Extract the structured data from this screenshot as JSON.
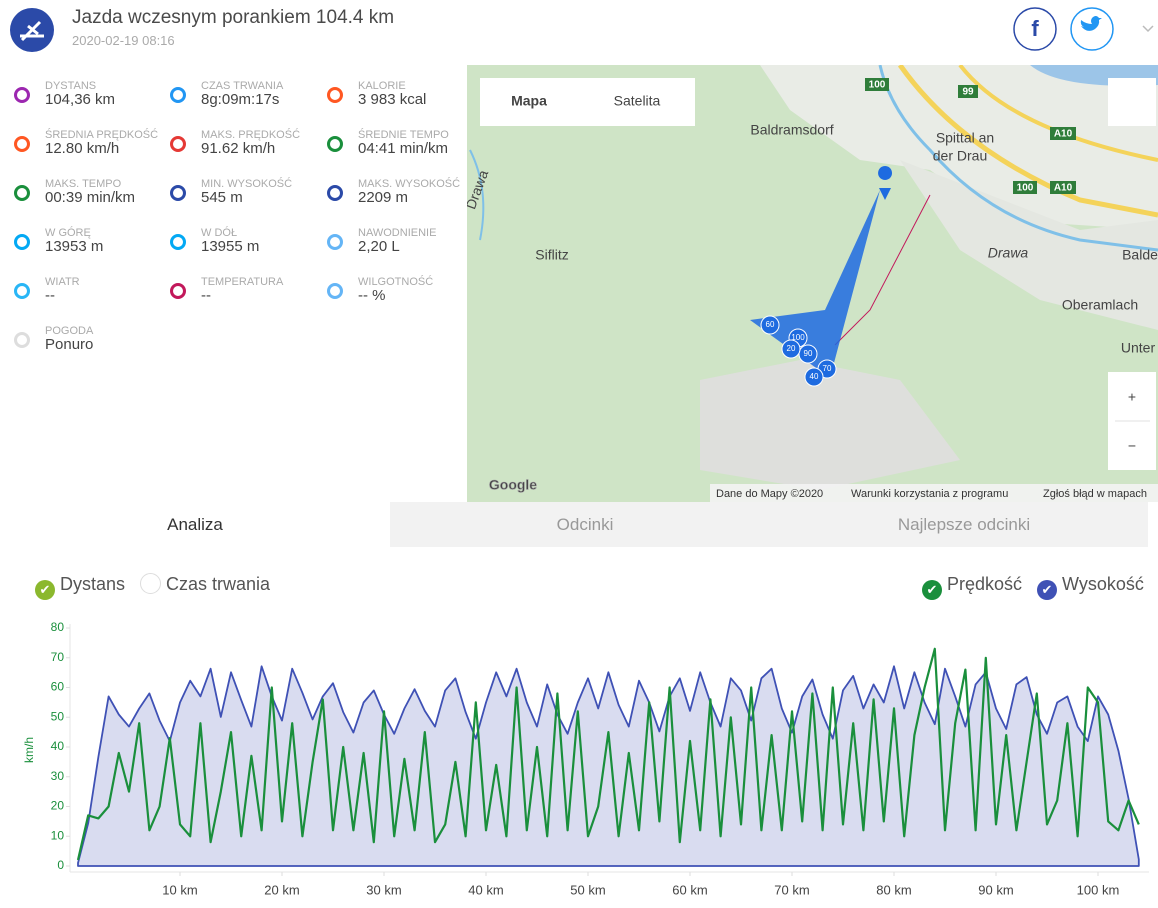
{
  "header": {
    "title": "Jazda wczesnym porankiem 104.4 km",
    "date": "2020-02-19 08:16"
  },
  "stats": [
    {
      "label": "DYSTANS",
      "value": "104,36 km"
    },
    {
      "label": "CZAS TRWANIA",
      "value": "8g:09m:17s"
    },
    {
      "label": "KALORIE",
      "value": "3 983 kcal"
    },
    {
      "label": "ŚREDNIA PRĘDKOŚĆ",
      "value": "12.80 km/h"
    },
    {
      "label": "MAKS. PRĘDKOŚĆ",
      "value": "91.62 km/h"
    },
    {
      "label": "ŚREDNIE TEMPO",
      "value": "04:41 min/km"
    },
    {
      "label": "MAKS. TEMPO",
      "value": "00:39 min/km"
    },
    {
      "label": "MIN. WYSOKOŚĆ",
      "value": "545 m"
    },
    {
      "label": "MAKS. WYSOKOŚĆ",
      "value": "2209 m"
    },
    {
      "label": "W GÓRĘ",
      "value": "13953 m"
    },
    {
      "label": "W DÓŁ",
      "value": "13955 m"
    },
    {
      "label": "NAWODNIENIE",
      "value": "2,20 L"
    },
    {
      "label": "WIATR",
      "value": "--"
    },
    {
      "label": "TEMPERATURA",
      "value": "--"
    },
    {
      "label": "WILGOTNOŚĆ",
      "value": "-- %"
    },
    {
      "label": "POGODA",
      "value": "Ponuro"
    }
  ],
  "map": {
    "buttons": [
      "Mapa",
      "Satelita"
    ],
    "places": [
      "Baldramsdorf",
      "Spittal an",
      "der Drau",
      "Siflitz",
      "Oberamlach",
      "Unter",
      "Balde",
      "Drawa",
      "Drawa"
    ],
    "roads": [
      "100",
      "99",
      "A10",
      "100",
      "A10"
    ],
    "markers": [
      "60",
      "100",
      "90",
      "70",
      "40",
      "20"
    ],
    "zoom": [
      "+",
      "−"
    ],
    "logo": "Google",
    "footer": [
      "Dane do Mapy ©2020",
      "Warunki korzystania z programu",
      "Zgłoś błąd w mapach"
    ]
  },
  "tabs": [
    "Analiza",
    "Odcinki",
    "Najlepsze odcinki"
  ],
  "toggles": [
    "Dystans",
    "Czas trwania"
  ],
  "chart_data": {
    "type": "line",
    "ylabel": "km/h",
    "x": [
      0,
      1,
      2,
      3,
      4,
      5,
      6,
      7,
      8,
      9,
      10,
      11,
      12,
      13,
      14,
      15,
      16,
      17,
      18,
      19,
      20,
      21,
      22,
      23,
      24,
      25,
      26,
      27,
      28,
      29,
      30,
      31,
      32,
      33,
      34,
      35,
      36,
      37,
      38,
      39,
      40,
      41,
      42,
      43,
      44,
      45,
      46,
      47,
      48,
      49,
      50,
      51,
      52,
      53,
      54,
      55,
      56,
      57,
      58,
      59,
      60,
      61,
      62,
      63,
      64,
      65,
      66,
      67,
      68,
      69,
      70,
      71,
      72,
      73,
      74,
      75,
      76,
      77,
      78,
      79,
      80,
      81,
      82,
      83,
      84,
      85,
      86,
      87,
      88,
      89,
      90,
      91,
      92,
      93,
      94,
      95,
      96,
      97,
      98,
      99,
      100,
      101,
      102,
      103,
      104
    ],
    "xlim": [
      0,
      105
    ],
    "xticks": [
      {
        "value": 10,
        "label": "10 km"
      },
      {
        "value": 20,
        "label": "20 km"
      },
      {
        "value": 30,
        "label": "30 km"
      },
      {
        "value": 40,
        "label": "40 km"
      },
      {
        "value": 50,
        "label": "50 km"
      },
      {
        "value": 60,
        "label": "60 km"
      },
      {
        "value": 70,
        "label": "70 km"
      },
      {
        "value": 80,
        "label": "80 km"
      },
      {
        "value": 90,
        "label": "90 km"
      },
      {
        "value": 100,
        "label": "100 km"
      }
    ],
    "ylim": [
      0,
      80
    ],
    "yticks": [
      0,
      10,
      20,
      30,
      40,
      50,
      60,
      70,
      80
    ],
    "y2lim": [
      545,
      2517
    ],
    "grid": false,
    "series": [
      {
        "name": "Prędkość",
        "color": "#1a8f3c",
        "values": [
          2,
          17,
          16,
          20,
          38,
          25,
          48,
          12,
          20,
          43,
          14,
          10,
          48,
          8,
          25,
          45,
          10,
          37,
          12,
          60,
          15,
          48,
          10,
          35,
          56,
          12,
          40,
          12,
          38,
          8,
          52,
          10,
          36,
          12,
          45,
          8,
          14,
          35,
          10,
          55,
          12,
          34,
          10,
          60,
          12,
          40,
          10,
          58,
          12,
          52,
          10,
          20,
          45,
          10,
          38,
          12,
          55,
          15,
          60,
          8,
          42,
          12,
          56,
          10,
          50,
          14,
          60,
          12,
          44,
          12,
          52,
          15,
          58,
          12,
          60,
          14,
          48,
          12,
          56,
          15,
          53,
          10,
          44,
          60,
          73,
          12,
          48,
          66,
          12,
          70,
          14,
          44,
          12,
          35,
          58,
          14,
          22,
          48,
          10,
          60,
          55,
          15,
          12,
          22,
          14
        ]
      },
      {
        "name": "Wysokość",
        "color": "#3f51b5",
        "axis": "y2",
        "values": [
          570,
          900,
          1450,
          1950,
          1800,
          1700,
          1850,
          1975,
          1750,
          1580,
          1900,
          2080,
          1950,
          2180,
          1780,
          2150,
          1920,
          1700,
          2200,
          1950,
          1750,
          2180,
          1980,
          1760,
          1950,
          2060,
          1820,
          1650,
          1900,
          2000,
          1800,
          1640,
          1850,
          2010,
          1830,
          1700,
          2000,
          2100,
          1820,
          1600,
          1900,
          2150,
          1950,
          2180,
          1900,
          1700,
          2050,
          1800,
          1640,
          1900,
          2100,
          1850,
          2150,
          1880,
          1700,
          2080,
          1900,
          1660,
          1950,
          2100,
          1830,
          2150,
          1900,
          1700,
          2100,
          2000,
          1750,
          2100,
          2180,
          1850,
          1650,
          1950,
          2090,
          1800,
          1600,
          2000,
          2120,
          1850,
          2050,
          1900,
          2200,
          1850,
          2150,
          1900,
          1720,
          2180,
          1950,
          1700,
          2050,
          2150,
          1850,
          1680,
          2050,
          2110,
          1800,
          1640,
          1900,
          1950,
          1700,
          1580,
          1950,
          1800,
          1500,
          1100,
          600
        ]
      }
    ]
  }
}
